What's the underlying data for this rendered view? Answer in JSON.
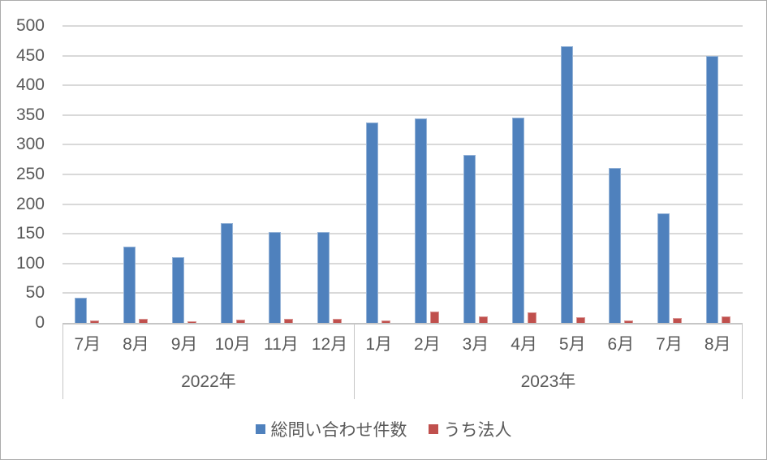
{
  "chart_data": {
    "type": "bar",
    "title": "",
    "categories": [
      "7月",
      "8月",
      "9月",
      "10月",
      "11月",
      "12月",
      "1月",
      "2月",
      "3月",
      "4月",
      "5月",
      "6月",
      "7月",
      "8月"
    ],
    "category_groups": [
      {
        "label": "2022年",
        "span": 6
      },
      {
        "label": "2023年",
        "span": 8
      }
    ],
    "series": [
      {
        "name": "総問い合わせ件数",
        "color": "#4f81bd",
        "border_color": "#95b3d7",
        "values": [
          43,
          129,
          110,
          168,
          153,
          153,
          337,
          344,
          283,
          346,
          466,
          261,
          184,
          450
        ]
      },
      {
        "name": "うち法人",
        "color": "#c0504d",
        "border_color": "#d99694",
        "values": [
          4,
          7,
          3,
          6,
          7,
          7,
          4,
          19,
          11,
          18,
          10,
          4,
          8,
          11
        ]
      }
    ],
    "ylim": [
      0,
      500
    ],
    "yticks": [
      0,
      50,
      100,
      150,
      200,
      250,
      300,
      350,
      400,
      450,
      500
    ],
    "grid": true,
    "gridline_color": "#d9d9d9",
    "axis_line_color": "#c6c6c6",
    "tick_label_color": "#595959",
    "legend_position": "bottom"
  }
}
